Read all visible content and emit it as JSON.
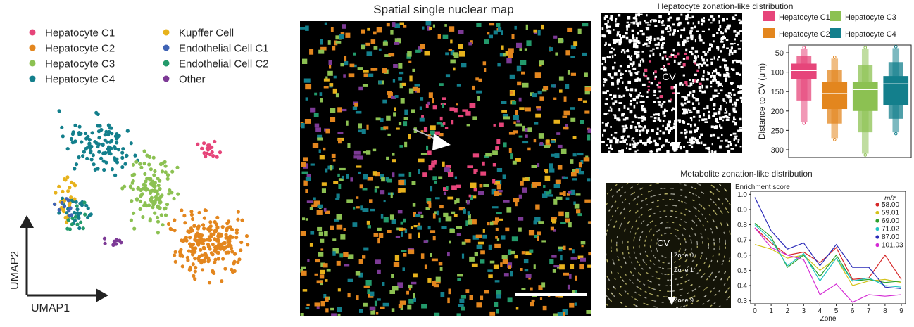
{
  "colors": {
    "hep_c1": "#e6457a",
    "hep_c2": "#e3861e",
    "hep_c3": "#8cc152",
    "hep_c4": "#137f8c",
    "kupffer": "#e7b21c",
    "endo_c1": "#3f63b5",
    "endo_c2": "#239a6b",
    "other": "#7d3a96"
  },
  "umap": {
    "legend": [
      {
        "label": "Hepatocyte C1",
        "color_key": "hep_c1"
      },
      {
        "label": "Hepatocyte C2",
        "color_key": "hep_c2"
      },
      {
        "label": "Hepatocyte C3",
        "color_key": "hep_c3"
      },
      {
        "label": "Hepatocyte C4",
        "color_key": "hep_c4"
      },
      {
        "label": "Kupffer Cell",
        "color_key": "kupffer"
      },
      {
        "label": "Endothelial Cell C1",
        "color_key": "endo_c1"
      },
      {
        "label": "Endothelial Cell C2",
        "color_key": "endo_c2"
      },
      {
        "label": "Other",
        "color_key": "other"
      }
    ],
    "xlabel": "UMAP1",
    "ylabel": "UMAP2"
  },
  "spatial": {
    "title": "Spatial single nuclear map"
  },
  "zonation": {
    "title": "Hepatocyte zonation-like distribution",
    "cv_label": "CV"
  },
  "chart_data": [
    {
      "type": "boxen",
      "title": "",
      "legend": [
        "Hepatocyte C1",
        "Hepatocyte C3",
        "Hepatocyte C2",
        "Hepatocyte C4"
      ],
      "categories": [
        "Hepatocyte C1",
        "Hepatocyte C2",
        "Hepatocyte C3",
        "Hepatocyte C4"
      ],
      "ylabel": "Distance to CV (μm)",
      "ylim": [
        30,
        320
      ],
      "yaxis_inverted": true,
      "yticks": [
        50,
        100,
        150,
        200,
        250,
        300
      ],
      "series": [
        {
          "name": "Hepatocyte C1",
          "min": 40,
          "q1": 78,
          "median": 96,
          "q3": 118,
          "max": 228,
          "color_key": "hep_c1"
        },
        {
          "name": "Hepatocyte C2",
          "min": 65,
          "q1": 125,
          "median": 155,
          "q3": 195,
          "max": 270,
          "color_key": "hep_c2"
        },
        {
          "name": "Hepatocyte C3",
          "min": 40,
          "q1": 125,
          "median": 145,
          "q3": 200,
          "max": 310,
          "color_key": "hep_c3"
        },
        {
          "name": "Hepatocyte C4",
          "min": 38,
          "q1": 110,
          "median": 130,
          "q3": 185,
          "max": 255,
          "color_key": "hep_c4"
        }
      ]
    },
    {
      "type": "line",
      "title": "Metabolite zonation-like distribution",
      "ylabel": "Enrichment score",
      "xlabel": "Zone",
      "legend_title": "m/z",
      "x": [
        0,
        1,
        2,
        3,
        4,
        5,
        6,
        7,
        8,
        9
      ],
      "ylim": [
        0.28,
        1.02
      ],
      "yticks": [
        0.3,
        0.4,
        0.5,
        0.6,
        0.7,
        0.8,
        0.9,
        1.0
      ],
      "series": [
        {
          "name": "58.00",
          "color": "#d62728",
          "values": [
            0.78,
            0.68,
            0.6,
            0.62,
            0.55,
            0.65,
            0.44,
            0.45,
            0.6,
            0.44
          ]
        },
        {
          "name": "59.01",
          "color": "#d4c21a",
          "values": [
            0.67,
            0.64,
            0.58,
            0.6,
            0.5,
            0.58,
            0.4,
            0.43,
            0.44,
            0.42
          ]
        },
        {
          "name": "69.00",
          "color": "#2ca02c",
          "values": [
            0.81,
            0.72,
            0.52,
            0.6,
            0.46,
            0.6,
            0.43,
            0.44,
            0.42,
            0.43
          ]
        },
        {
          "name": "71.02",
          "color": "#22c4c4",
          "values": [
            0.8,
            0.7,
            0.53,
            0.61,
            0.43,
            0.58,
            0.43,
            0.45,
            0.4,
            0.39
          ]
        },
        {
          "name": "87.00",
          "color": "#2a2ab8",
          "values": [
            0.98,
            0.76,
            0.64,
            0.68,
            0.53,
            0.67,
            0.52,
            0.52,
            0.39,
            0.38
          ]
        },
        {
          "name": "101.03",
          "color": "#d42ad4",
          "values": [
            0.78,
            0.65,
            0.6,
            0.57,
            0.34,
            0.41,
            0.29,
            0.34,
            0.33,
            0.34
          ]
        }
      ]
    }
  ],
  "metabolite": {
    "cv_label": "CV",
    "zone_labels": [
      "Zone 0",
      "Zone 1",
      "Zone 9"
    ]
  }
}
